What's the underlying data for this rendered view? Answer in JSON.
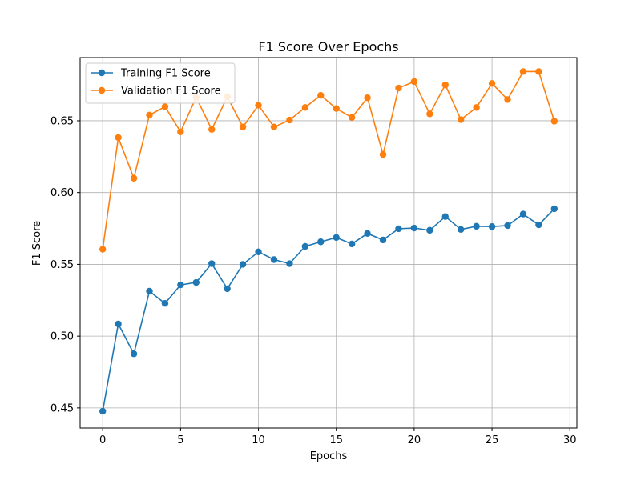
{
  "chart_data": {
    "type": "line",
    "title": "F1 Score Over Epochs",
    "xlabel": "Epochs",
    "ylabel": "F1 Score",
    "xlim": [
      -1.45,
      30.45
    ],
    "ylim": [
      0.436,
      0.694
    ],
    "xticks": [
      0,
      5,
      10,
      15,
      20,
      25,
      30
    ],
    "yticks": [
      0.45,
      0.5,
      0.55,
      0.6,
      0.65
    ],
    "ytick_labels": [
      "0.45",
      "0.50",
      "0.55",
      "0.60",
      "0.65"
    ],
    "grid": true,
    "legend_position": "top-left",
    "x": [
      0,
      1,
      2,
      3,
      4,
      5,
      6,
      7,
      8,
      9,
      10,
      11,
      12,
      13,
      14,
      15,
      16,
      17,
      18,
      19,
      20,
      21,
      22,
      23,
      24,
      25,
      26,
      27,
      28,
      29
    ],
    "series": [
      {
        "name": "Training F1 Score",
        "color": "#1f77b4",
        "values": [
          0.4477,
          0.5085,
          0.4877,
          0.5313,
          0.5228,
          0.5357,
          0.5374,
          0.5505,
          0.533,
          0.55,
          0.5587,
          0.5533,
          0.5505,
          0.5625,
          0.5657,
          0.5687,
          0.5642,
          0.5715,
          0.567,
          0.5748,
          0.5753,
          0.5737,
          0.5833,
          0.5743,
          0.5765,
          0.5763,
          0.577,
          0.585,
          0.5775,
          0.5887
        ]
      },
      {
        "name": "Validation F1 Score",
        "color": "#ff7f0e",
        "values": [
          0.5605,
          0.6383,
          0.61,
          0.654,
          0.6598,
          0.6423,
          0.6663,
          0.644,
          0.6667,
          0.6457,
          0.6608,
          0.6457,
          0.6505,
          0.6593,
          0.6677,
          0.6585,
          0.6523,
          0.666,
          0.6265,
          0.6728,
          0.6773,
          0.6548,
          0.675,
          0.6508,
          0.6593,
          0.676,
          0.6648,
          0.6843,
          0.6843,
          0.6497
        ]
      }
    ]
  }
}
